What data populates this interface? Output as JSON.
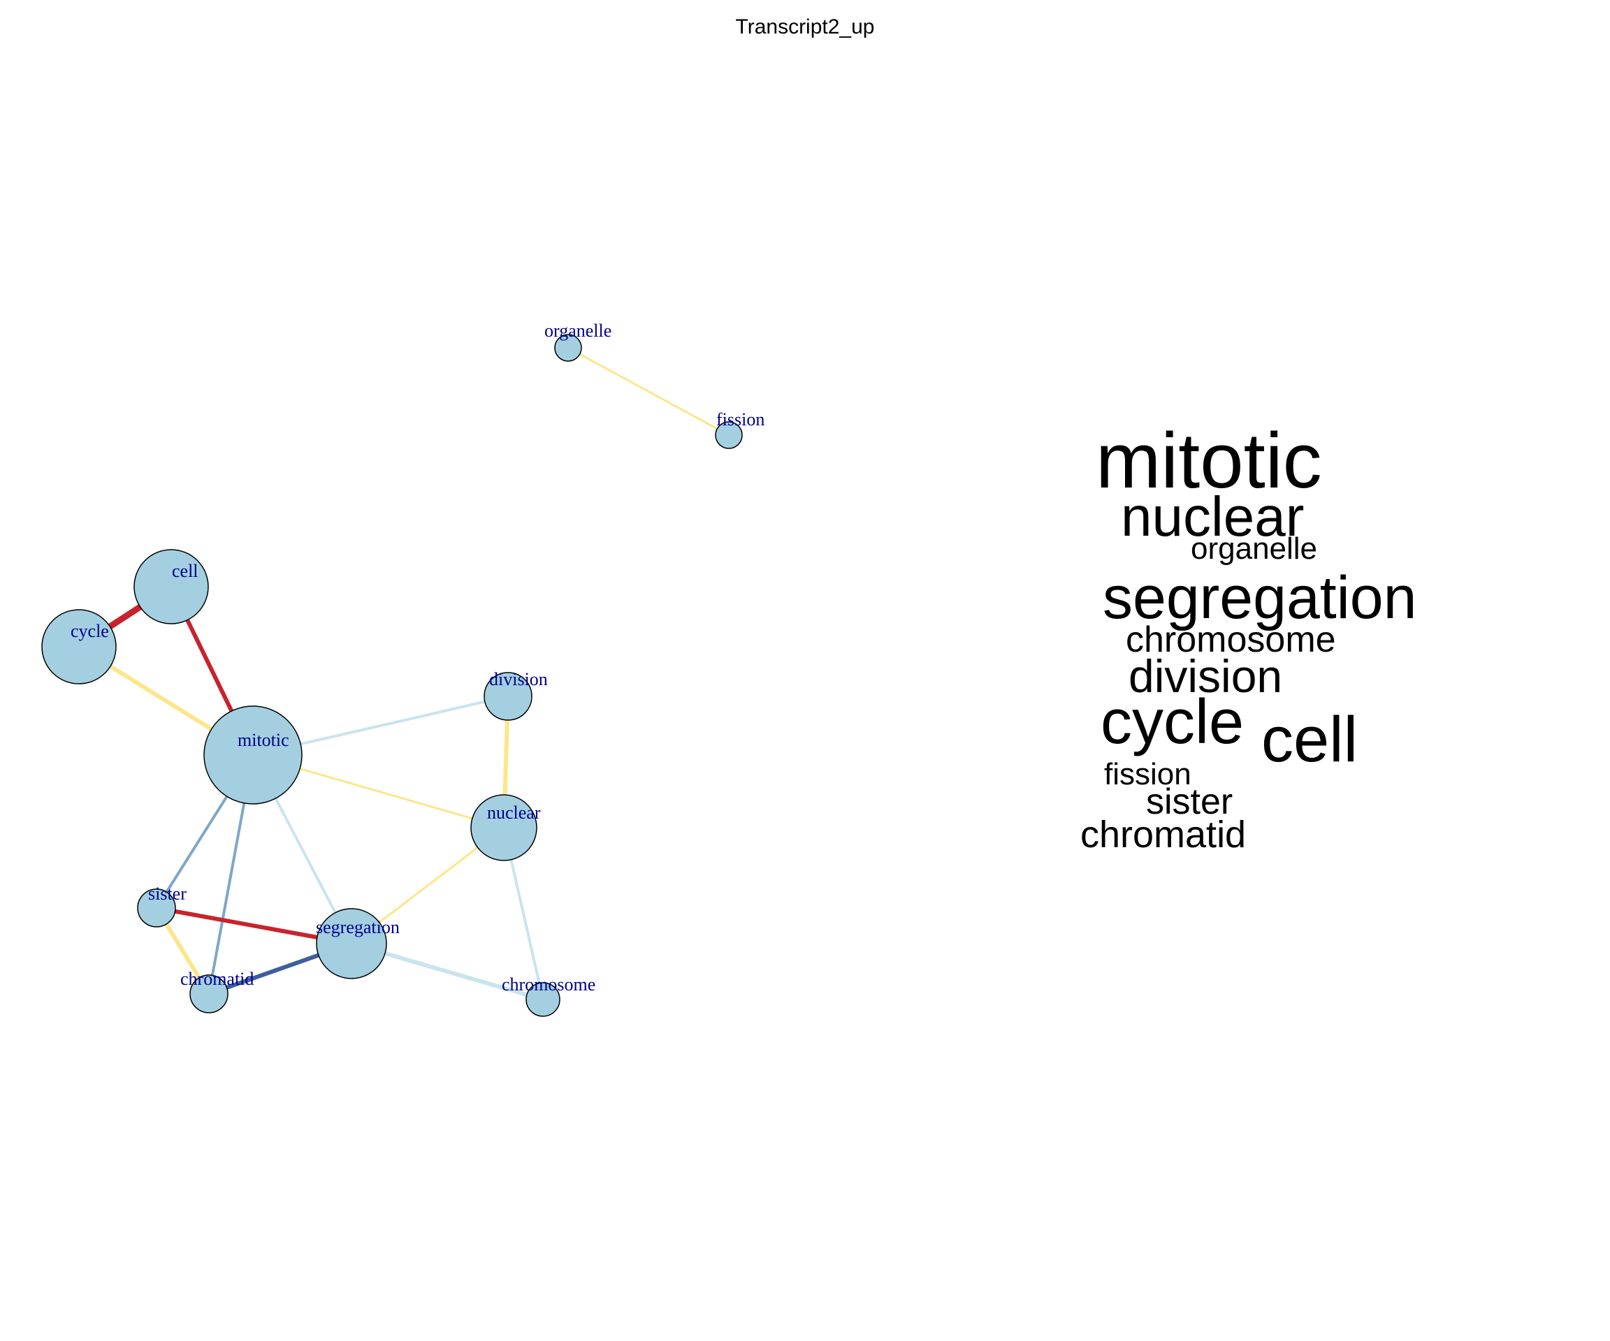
{
  "title": "Transcript2_up",
  "colors": {
    "node_fill": "#a3cfe0",
    "node_stroke": "#000000",
    "label": "#00008b",
    "edge_red": "#c8232c",
    "edge_yellow": "#fde68a",
    "edge_lightblue": "#c9e4ee",
    "edge_steelblue": "#7ea7c8",
    "edge_darkblue": "#3d5fa0"
  },
  "network": {
    "nodes": [
      {
        "id": "organelle",
        "label": "organelle"
      },
      {
        "id": "fission",
        "label": "fission"
      },
      {
        "id": "cell",
        "label": "cell"
      },
      {
        "id": "cycle",
        "label": "cycle"
      },
      {
        "id": "division",
        "label": "division"
      },
      {
        "id": "mitotic",
        "label": "mitotic"
      },
      {
        "id": "nuclear",
        "label": "nuclear"
      },
      {
        "id": "sister",
        "label": "sister"
      },
      {
        "id": "segregation",
        "label": "segregation"
      },
      {
        "id": "chromatid",
        "label": "chromatid"
      },
      {
        "id": "chromosome",
        "label": "chromosome"
      }
    ],
    "edges": [
      {
        "source": "organelle",
        "target": "fission",
        "color": "edge_yellow"
      },
      {
        "source": "cell",
        "target": "cycle",
        "color": "edge_red"
      },
      {
        "source": "cell",
        "target": "mitotic",
        "color": "edge_red"
      },
      {
        "source": "cycle",
        "target": "mitotic",
        "color": "edge_yellow"
      },
      {
        "source": "mitotic",
        "target": "division",
        "color": "edge_lightblue"
      },
      {
        "source": "mitotic",
        "target": "nuclear",
        "color": "edge_yellow"
      },
      {
        "source": "division",
        "target": "nuclear",
        "color": "edge_yellow"
      },
      {
        "source": "mitotic",
        "target": "sister",
        "color": "edge_steelblue"
      },
      {
        "source": "mitotic",
        "target": "chromatid",
        "color": "edge_steelblue"
      },
      {
        "source": "mitotic",
        "target": "segregation",
        "color": "edge_lightblue"
      },
      {
        "source": "nuclear",
        "target": "segregation",
        "color": "edge_yellow"
      },
      {
        "source": "nuclear",
        "target": "chromosome",
        "color": "edge_lightblue"
      },
      {
        "source": "sister",
        "target": "segregation",
        "color": "edge_red"
      },
      {
        "source": "sister",
        "target": "chromatid",
        "color": "edge_yellow"
      },
      {
        "source": "chromatid",
        "target": "segregation",
        "color": "edge_darkblue"
      },
      {
        "source": "segregation",
        "target": "chromosome",
        "color": "edge_lightblue"
      }
    ]
  },
  "word_cloud": {
    "words": [
      {
        "text": "mitotic"
      },
      {
        "text": "nuclear"
      },
      {
        "text": "organelle"
      },
      {
        "text": "segregation"
      },
      {
        "text": "chromosome"
      },
      {
        "text": "division"
      },
      {
        "text": "cycle"
      },
      {
        "text": "cell"
      },
      {
        "text": "fission"
      },
      {
        "text": "sister"
      },
      {
        "text": "chromatid"
      }
    ]
  }
}
